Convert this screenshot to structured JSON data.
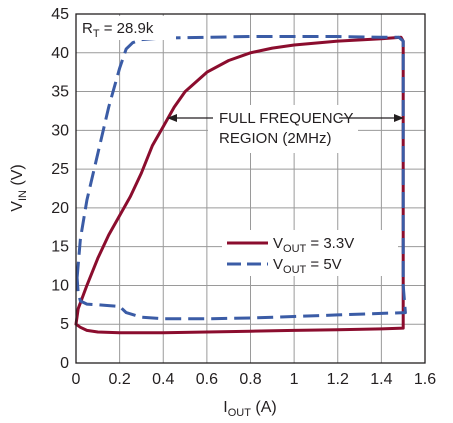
{
  "chart_data": {
    "type": "line",
    "xlabel": {
      "main": "I",
      "sub": "OUT",
      "unit": " (A)"
    },
    "ylabel": {
      "main": "V",
      "sub": "IN",
      "unit": " (V)"
    },
    "xlim": [
      0,
      1.6
    ],
    "ylim": [
      0,
      45
    ],
    "xticks": [
      0,
      0.2,
      0.4,
      0.6,
      0.8,
      1,
      1.2,
      1.4,
      1.6
    ],
    "xtick_labels": [
      "0",
      "0.2",
      "0.4",
      "0.6",
      "0.8",
      "1",
      "1.2",
      "1.4",
      "1.6"
    ],
    "yticks": [
      0,
      5,
      10,
      15,
      20,
      25,
      30,
      35,
      40,
      45
    ],
    "ytick_labels": [
      "0",
      "5",
      "10",
      "15",
      "20",
      "25",
      "30",
      "35",
      "40",
      "45"
    ],
    "grid": true,
    "legend_position": "right-center",
    "param_label": {
      "main": "R",
      "sub": "T",
      "rest": " = 28.9k"
    },
    "annotation": {
      "line1": "FULL FREQUENCY",
      "line2": "REGION (2MHz)"
    },
    "series": [
      {
        "name": {
          "main": "V",
          "sub": "OUT",
          "rest": " = 3.3V"
        },
        "color": "#8b0d2e",
        "style": "solid",
        "points": [
          [
            0,
            5.0
          ],
          [
            0.01,
            7.0
          ],
          [
            0.05,
            10.0
          ],
          [
            0.1,
            13.5
          ],
          [
            0.15,
            16.5
          ],
          [
            0.2,
            19.0
          ],
          [
            0.25,
            21.5
          ],
          [
            0.3,
            24.5
          ],
          [
            0.35,
            28.0
          ],
          [
            0.4,
            30.5
          ],
          [
            0.45,
            33.0
          ],
          [
            0.5,
            35.0
          ],
          [
            0.6,
            37.5
          ],
          [
            0.7,
            39.0
          ],
          [
            0.8,
            40.0
          ],
          [
            0.9,
            40.6
          ],
          [
            1.0,
            41.0
          ],
          [
            1.2,
            41.5
          ],
          [
            1.4,
            41.8
          ],
          [
            1.49,
            42.0
          ],
          [
            1.5,
            41.5
          ],
          [
            1.5,
            30.0
          ],
          [
            1.5,
            15.0
          ],
          [
            1.5,
            4.5
          ],
          [
            1.4,
            4.4
          ],
          [
            1.2,
            4.3
          ],
          [
            1.0,
            4.2
          ],
          [
            0.8,
            4.1
          ],
          [
            0.6,
            4.0
          ],
          [
            0.4,
            3.9
          ],
          [
            0.2,
            3.9
          ],
          [
            0.1,
            4.0
          ],
          [
            0.05,
            4.2
          ],
          [
            0.02,
            4.6
          ],
          [
            0,
            5.0
          ]
        ]
      },
      {
        "name": {
          "main": "V",
          "sub": "OUT",
          "rest": " = 5V"
        },
        "color": "#3b5ca6",
        "style": "dashed",
        "points": [
          [
            0.005,
            11.0
          ],
          [
            0.02,
            16.0
          ],
          [
            0.05,
            21.0
          ],
          [
            0.1,
            27.0
          ],
          [
            0.15,
            33.0
          ],
          [
            0.2,
            38.0
          ],
          [
            0.23,
            40.5
          ],
          [
            0.26,
            41.3
          ],
          [
            0.3,
            41.7
          ],
          [
            0.4,
            41.9
          ],
          [
            0.6,
            42.0
          ],
          [
            0.8,
            42.1
          ],
          [
            1.0,
            42.1
          ],
          [
            1.2,
            42.1
          ],
          [
            1.4,
            42.0
          ],
          [
            1.48,
            42.0
          ],
          [
            1.5,
            41.5
          ],
          [
            1.5,
            40.0
          ],
          [
            1.5,
            30.0
          ],
          [
            1.5,
            20.0
          ],
          [
            1.5,
            10.0
          ],
          [
            1.51,
            6.5
          ],
          [
            1.4,
            6.4
          ],
          [
            1.2,
            6.2
          ],
          [
            1.0,
            6.0
          ],
          [
            0.8,
            5.8
          ],
          [
            0.6,
            5.7
          ],
          [
            0.4,
            5.7
          ],
          [
            0.3,
            5.9
          ],
          [
            0.23,
            6.5
          ],
          [
            0.2,
            7.3
          ],
          [
            0.15,
            7.4
          ],
          [
            0.1,
            7.5
          ],
          [
            0.05,
            7.6
          ],
          [
            0.02,
            8.0
          ],
          [
            0.01,
            9.0
          ],
          [
            0.005,
            11.0
          ]
        ]
      }
    ]
  }
}
